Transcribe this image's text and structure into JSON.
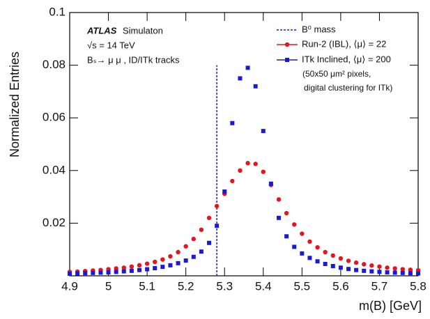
{
  "chart_data": {
    "type": "scatter",
    "y_label": "Normalized Entries",
    "x_label": "m(B) [GeV]",
    "annotations": [
      "ATLAS",
      "Simulaton",
      "√s = 14 TeV",
      "Bₛ→ μ μ , ID/ITk tracks"
    ],
    "legend_notes": [
      "(50x50 μm² pixels,",
      "digital clustering for ITk)"
    ],
    "reference_line": {
      "label": "B⁰ mass",
      "x": 5.28,
      "color": "#1a1ad6"
    },
    "xlim": [
      4.9,
      5.8
    ],
    "xticks": [
      4.9,
      5,
      5.1,
      5.2,
      5.3,
      5.4,
      5.5,
      5.6,
      5.7,
      5.8
    ],
    "ylim": [
      0,
      0.1
    ],
    "yticks": [
      0.02,
      0.04,
      0.06,
      0.08,
      0.1
    ],
    "x": [
      4.9,
      4.92,
      4.94,
      4.96,
      4.98,
      5.0,
      5.02,
      5.04,
      5.06,
      5.08,
      5.1,
      5.12,
      5.14,
      5.16,
      5.18,
      5.2,
      5.22,
      5.24,
      5.26,
      5.28,
      5.3,
      5.32,
      5.34,
      5.36,
      5.38,
      5.4,
      5.42,
      5.44,
      5.46,
      5.48,
      5.5,
      5.52,
      5.54,
      5.56,
      5.58,
      5.6,
      5.62,
      5.64,
      5.66,
      5.68,
      5.7,
      5.72,
      5.74,
      5.76,
      5.78,
      5.8
    ],
    "series": [
      {
        "name": "Run-2 (IBL), ⟨μ⟩ = 22",
        "color": "#e8131b",
        "marker": "circle",
        "values": [
          0.0015,
          0.0016,
          0.0018,
          0.002,
          0.0022,
          0.0025,
          0.0028,
          0.0031,
          0.0035,
          0.004,
          0.0046,
          0.0053,
          0.0062,
          0.0074,
          0.009,
          0.0112,
          0.014,
          0.0175,
          0.022,
          0.0265,
          0.0312,
          0.036,
          0.04,
          0.0428,
          0.0425,
          0.0395,
          0.0345,
          0.029,
          0.0238,
          0.0195,
          0.016,
          0.013,
          0.0108,
          0.009,
          0.0077,
          0.0066,
          0.0057,
          0.005,
          0.0044,
          0.0039,
          0.0035,
          0.0031,
          0.0028,
          0.0025,
          0.0023,
          0.0021
        ]
      },
      {
        "name": "ITk Inclined, ⟨μ⟩ = 200",
        "color": "#1a1ad6",
        "marker": "square",
        "values": [
          0.0008,
          0.0009,
          0.001,
          0.0011,
          0.0012,
          0.0013,
          0.0015,
          0.0017,
          0.0019,
          0.0022,
          0.0025,
          0.0029,
          0.0034,
          0.004,
          0.0048,
          0.0058,
          0.0072,
          0.0092,
          0.0125,
          0.019,
          0.032,
          0.058,
          0.075,
          0.079,
          0.072,
          0.055,
          0.035,
          0.022,
          0.015,
          0.011,
          0.0085,
          0.0068,
          0.0055,
          0.0045,
          0.0037,
          0.0031,
          0.0026,
          0.0022,
          0.0019,
          0.0017,
          0.0015,
          0.0013,
          0.0012,
          0.0011,
          0.001,
          0.0009
        ]
      }
    ]
  }
}
